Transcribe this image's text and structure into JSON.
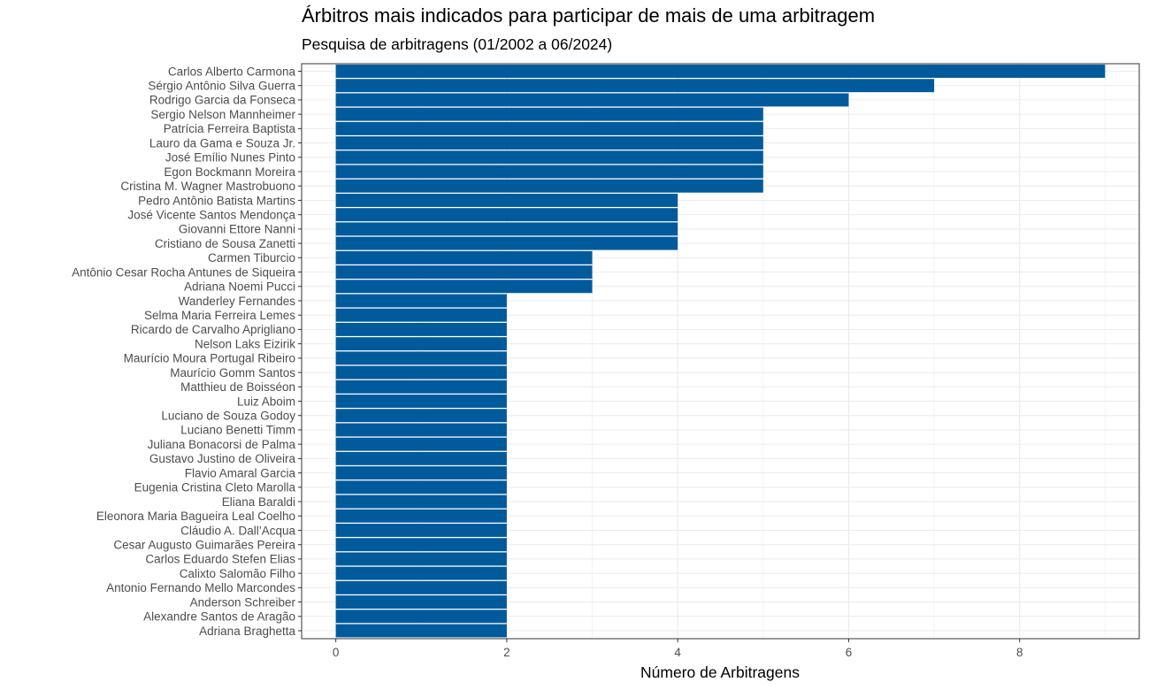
{
  "chart_data": {
    "type": "bar",
    "orientation": "horizontal",
    "title": "Árbitros mais indicados para participar de mais de uma arbitragem",
    "subtitle": "Pesquisa de arbitragens (01/2002 a 06/2024)",
    "xlabel": "Número de Arbitragens",
    "ylabel": "",
    "xlim": [
      0,
      9.4
    ],
    "xticks": [
      0,
      2,
      4,
      6,
      8
    ],
    "grid": true,
    "bar_color": "#005A9C",
    "categories": [
      "Carlos Alberto Carmona",
      "Sérgio Antônio Silva Guerra",
      "Rodrigo Garcia da Fonseca",
      "Sergio Nelson Mannheimer",
      "Patrícia Ferreira Baptista",
      "Lauro da Gama e Souza Jr.",
      "José Emílio Nunes Pinto",
      "Egon Bockmann Moreira",
      "Cristina M. Wagner Mastrobuono",
      "Pedro Antônio Batista Martins",
      "José Vicente Santos Mendonça",
      "Giovanni Ettore Nanni",
      "Cristiano de Sousa Zanetti",
      "Carmen Tiburcio",
      "Antônio Cesar Rocha Antunes de Siqueira",
      "Adriana Noemi Pucci",
      "Wanderley Fernandes",
      "Selma Maria Ferreira Lemes",
      "Ricardo de Carvalho Aprigliano",
      "Nelson Laks Eizirik",
      "Maurício Moura Portugal Ribeiro",
      "Maurício Gomm Santos",
      "Matthieu de Boisséon",
      "Luiz Aboim",
      "Luciano de Souza Godoy",
      "Luciano Benetti Timm",
      "Juliana Bonacorsi de Palma",
      "Gustavo Justino de Oliveira",
      "Flavio Amaral Garcia",
      "Eugenia Cristina Cleto Marolla",
      "Eliana Baraldi",
      "Eleonora Maria Bagueira Leal Coelho",
      "Cláudio A. Dall’Acqua",
      "Cesar Augusto Guimarães Pereira",
      "Carlos Eduardo Stefen Elias",
      "Calixto Salomão Filho",
      "Antonio Fernando Mello Marcondes",
      "Anderson Schreiber",
      "Alexandre Santos de Aragão",
      "Adriana Braghetta"
    ],
    "values": [
      9,
      7,
      6,
      5,
      5,
      5,
      5,
      5,
      5,
      4,
      4,
      4,
      4,
      3,
      3,
      3,
      2,
      2,
      2,
      2,
      2,
      2,
      2,
      2,
      2,
      2,
      2,
      2,
      2,
      2,
      2,
      2,
      2,
      2,
      2,
      2,
      2,
      2,
      2,
      2
    ]
  }
}
